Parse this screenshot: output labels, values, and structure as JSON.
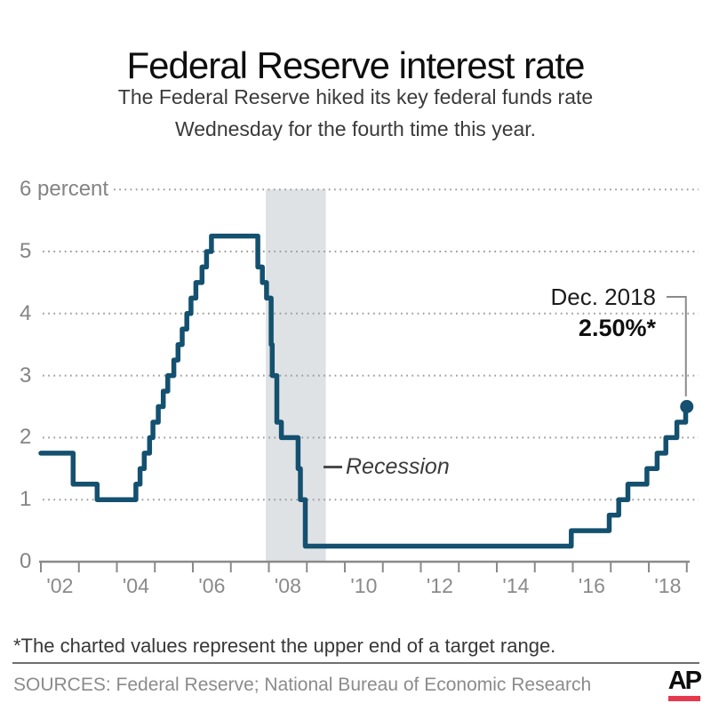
{
  "header": {
    "title": "Federal Reserve interest rate",
    "subtitle_line1": "The Federal Reserve hiked its key federal funds rate",
    "subtitle_line2": "Wednesday for the fourth time this year."
  },
  "chart_data": {
    "type": "line",
    "step": true,
    "title": "Federal Reserve interest rate",
    "xlabel": "",
    "ylabel": "percent",
    "x_range": [
      2002,
      2019.1
    ],
    "y_range": [
      0,
      6
    ],
    "grid": "dotted horizontal",
    "y_ticks": [
      0,
      1,
      2,
      3,
      4,
      5,
      6
    ],
    "y_tick_labels": [
      "0",
      "1",
      "2",
      "3",
      "4",
      "5",
      "6 percent"
    ],
    "x_tick_years": [
      2002,
      2003,
      2004,
      2005,
      2006,
      2007,
      2008,
      2009,
      2010,
      2011,
      2012,
      2013,
      2014,
      2015,
      2016,
      2017,
      2018,
      2019
    ],
    "x_label_years": [
      2002,
      2004,
      2006,
      2008,
      2010,
      2012,
      2014,
      2016,
      2018
    ],
    "x_tick_labels": [
      "'02",
      "'04",
      "'06",
      "'08",
      "'10",
      "'12",
      "'14",
      "'16",
      "'18"
    ],
    "series": [
      {
        "name": "Federal funds rate (upper end of target range), percent",
        "points": [
          [
            2002.0,
            1.75
          ],
          [
            2002.85,
            1.25
          ],
          [
            2003.48,
            1.0
          ],
          [
            2004.5,
            1.25
          ],
          [
            2004.61,
            1.5
          ],
          [
            2004.72,
            1.75
          ],
          [
            2004.86,
            2.0
          ],
          [
            2004.95,
            2.25
          ],
          [
            2005.09,
            2.5
          ],
          [
            2005.22,
            2.75
          ],
          [
            2005.34,
            3.0
          ],
          [
            2005.5,
            3.25
          ],
          [
            2005.61,
            3.5
          ],
          [
            2005.72,
            3.75
          ],
          [
            2005.84,
            4.0
          ],
          [
            2005.95,
            4.25
          ],
          [
            2006.08,
            4.5
          ],
          [
            2006.24,
            4.75
          ],
          [
            2006.36,
            5.0
          ],
          [
            2006.49,
            5.25
          ],
          [
            2007.71,
            4.75
          ],
          [
            2007.83,
            4.5
          ],
          [
            2007.94,
            4.25
          ],
          [
            2008.06,
            3.5
          ],
          [
            2008.09,
            3.0
          ],
          [
            2008.21,
            2.25
          ],
          [
            2008.33,
            2.0
          ],
          [
            2008.77,
            1.5
          ],
          [
            2008.83,
            1.0
          ],
          [
            2008.96,
            0.25
          ],
          [
            2015.96,
            0.5
          ],
          [
            2016.96,
            0.75
          ],
          [
            2017.21,
            1.0
          ],
          [
            2017.45,
            1.25
          ],
          [
            2017.95,
            1.5
          ],
          [
            2018.22,
            1.75
          ],
          [
            2018.45,
            2.0
          ],
          [
            2018.74,
            2.25
          ],
          [
            2018.97,
            2.5
          ]
        ]
      }
    ],
    "end_point": {
      "x": 2019.0,
      "y": 2.5
    },
    "recession_band": {
      "from": 2007.92,
      "to": 2009.5,
      "label": "Recession"
    },
    "annotation": {
      "label": "Dec. 2018",
      "value": "2.50%*"
    },
    "legend_position": "none",
    "colors": {
      "line": "#14506f",
      "dot": "#14506f",
      "band": "#dfe2e5",
      "grid": "#9a9a9a",
      "axis": "#8a8a8a",
      "callout": "#8a8a8a",
      "ap_red": "#e5394e"
    }
  },
  "footer": {
    "footnote": "*The charted values represent the upper end of a target range.",
    "sources": "SOURCES: Federal Reserve; National Bureau of Economic Research",
    "ap_logo": "AP"
  }
}
